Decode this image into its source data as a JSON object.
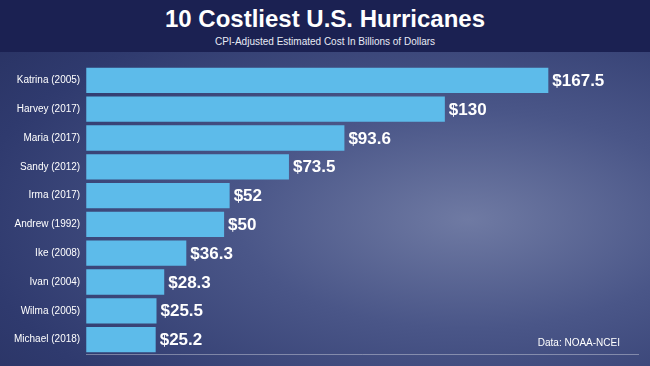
{
  "chart_data": {
    "type": "bar",
    "title": "10 Costliest U.S. Hurricanes",
    "subtitle": "CPI-Adjusted Estimated Cost In Billions of Dollars",
    "note": "Data: NOAA-NCEI",
    "orientation": "horizontal",
    "categories": [
      "Katrina (2005)",
      "Harvey (2017)",
      "Maria (2017)",
      "Sandy (2012)",
      "Irma (2017)",
      "Andrew (1992)",
      "Ike (2008)",
      "Ivan (2004)",
      "Wilma (2005)",
      "Michael (2018)"
    ],
    "values": [
      167.5,
      130,
      93.6,
      73.5,
      52,
      50,
      36.3,
      28.3,
      25.5,
      25.2
    ],
    "value_labels": [
      "$167.5",
      "$130",
      "$93.6",
      "$73.5",
      "$52",
      "$50",
      "$36.3",
      "$28.3",
      "$25.5",
      "$25.2"
    ],
    "color": "#5dbbea",
    "xlim": [
      0,
      200
    ],
    "grid": false,
    "data_labels": true,
    "tick_labels": "y"
  }
}
